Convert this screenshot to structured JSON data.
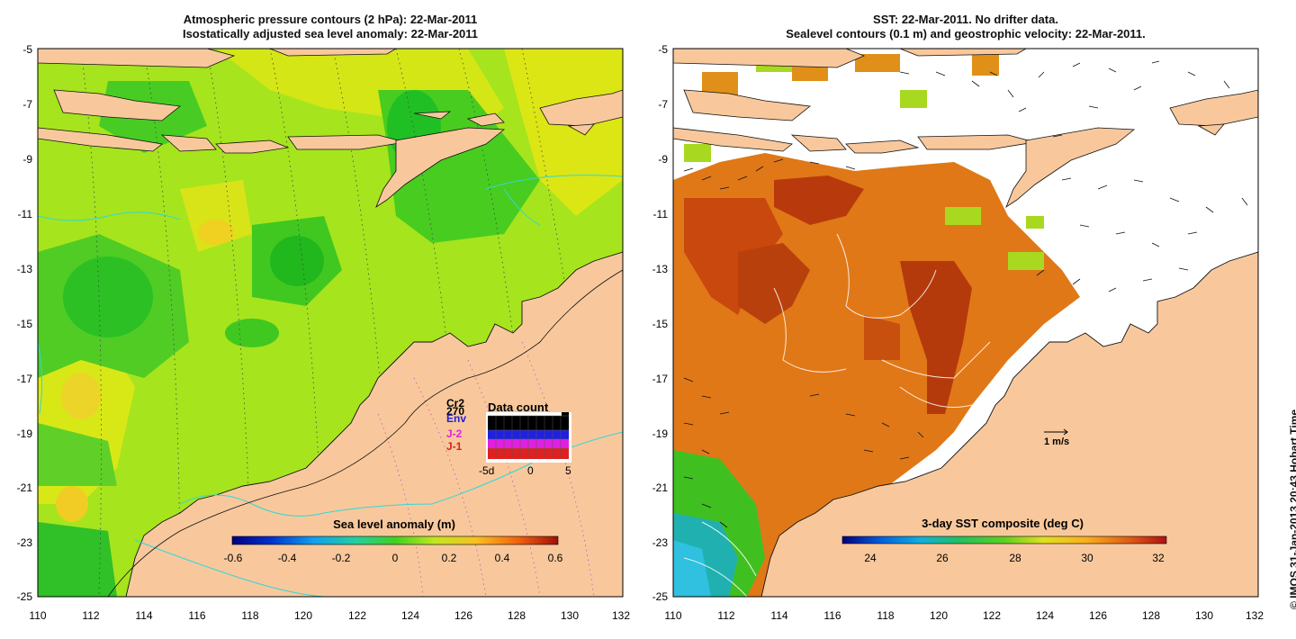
{
  "left_panel": {
    "title_line1": "Atmospheric pressure contours (2 hPa): 22-Mar-2011",
    "title_line2": "Isostatically adjusted sea level anomaly: 22-Mar-2011",
    "colorbar_title": "Sea level anomaly (m)",
    "colorbar_ticks": [
      "-0.6",
      "-0.4",
      "-0.2",
      "0",
      "0.2",
      "0.4",
      "0.6"
    ],
    "legend": {
      "title": "Data count",
      "satellites": [
        {
          "label": "Cr2",
          "color": "#000000"
        },
        {
          "label": "Env",
          "color": "#2020e0"
        },
        {
          "label": "J-2",
          "color": "#e020e0"
        },
        {
          "label": "J-1",
          "color": "#e02020"
        }
      ],
      "count_label": "270",
      "x_ticks": [
        "-5d",
        "0",
        "5"
      ]
    }
  },
  "right_panel": {
    "title_line1": "SST: 22-Mar-2011. No drifter data.",
    "title_line2": "Sealevel contours (0.1 m) and geostrophic velocity: 22-Mar-2011.",
    "colorbar_title": "3-day SST composite (deg C)",
    "colorbar_ticks": [
      "24",
      "26",
      "28",
      "30",
      "32"
    ],
    "velocity_scale_label": "1 m/s"
  },
  "axes": {
    "lon_ticks": [
      "110",
      "112",
      "114",
      "116",
      "118",
      "120",
      "122",
      "124",
      "126",
      "128",
      "130",
      "132"
    ],
    "lat_ticks": [
      "-5",
      "-7",
      "-9",
      "-11",
      "-13",
      "-15",
      "-17",
      "-19",
      "-21",
      "-23",
      "-25"
    ]
  },
  "credit": "© IMOS 31-Jan-2013 20:43 Hobart Time",
  "colors": {
    "land": "#f8c89c",
    "ocean_green": "#9be01c",
    "ocean_yellow": "#d8e814",
    "deep_green": "#28c81c",
    "sst_orange": "#e07818",
    "sst_red": "#b83a0c",
    "coast": "#111111",
    "isobath": "#30d8d8"
  }
}
